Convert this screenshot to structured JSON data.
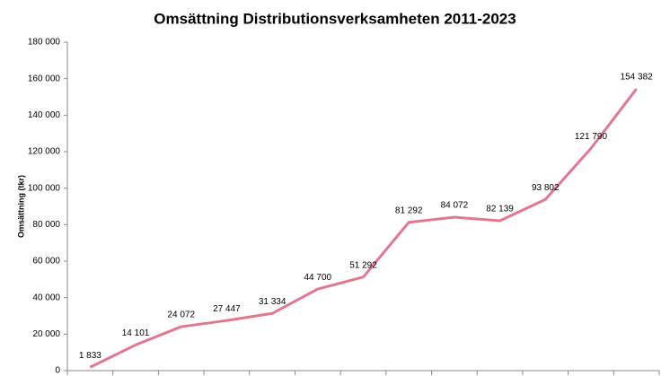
{
  "chart_data": {
    "type": "line",
    "title": "Omsättning Distributionsverksamheten 2011-2023",
    "y_label": "Omsättning (tkr)",
    "categories": [
      null,
      null,
      null,
      null,
      null,
      null,
      null,
      null,
      null,
      null,
      null,
      null,
      null
    ],
    "values": [
      1833,
      14101,
      24072,
      27447,
      31334,
      44700,
      51292,
      81292,
      84072,
      82139,
      93802,
      121790,
      154382
    ],
    "value_labels": [
      "1 833",
      "14 101",
      "24 072",
      "27 447",
      "31 334",
      "44 700",
      "51 292",
      "81 292",
      "84 072",
      "82 139",
      "93 802",
      "121 790",
      "154 382"
    ],
    "color": "#e0788f",
    "ylim": [
      0,
      180000
    ],
    "yticks": [
      0,
      {
        "value": 20000,
        "label": "20 000"
      },
      {
        "value": 40000,
        "label": "40 000"
      },
      {
        "value": 60000,
        "label": "60 000"
      },
      {
        "value": 80000,
        "label": "80 000"
      },
      {
        "value": 100000,
        "label": "100 000"
      },
      {
        "value": 120000,
        "label": "120 000"
      },
      {
        "value": 140000,
        "label": "140 000"
      },
      {
        "value": 160000,
        "label": "160 000"
      },
      {
        "value": 180000,
        "label": "180 000"
      }
    ],
    "grid": false
  }
}
